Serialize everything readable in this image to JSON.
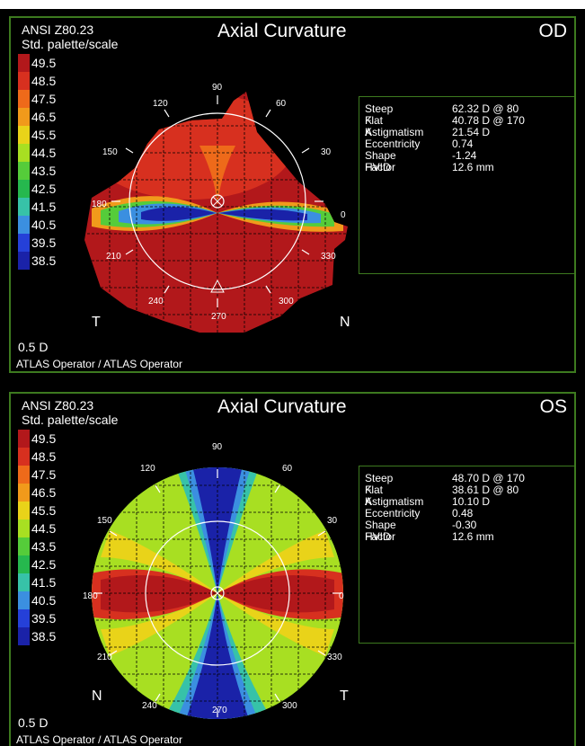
{
  "panels": [
    {
      "standard": "ANSI Z80.23",
      "palette_label": "Std. palette/scale",
      "title": "Axial Curvature",
      "eye": "OD",
      "scale": [
        "49.5",
        "48.5",
        "47.5",
        "46.5",
        "45.5",
        "44.5",
        "43.5",
        "42.5",
        "41.5",
        "40.5",
        "39.5",
        "38.5"
      ],
      "resolution": "0.5 D",
      "side_left": "T",
      "side_right": "N",
      "operator": "ATLAS Operator / ATLAS Operator",
      "angles": [
        "90",
        "60",
        "30",
        "0",
        "330",
        "300",
        "270",
        "240",
        "210",
        "180",
        "150",
        "120"
      ],
      "info": [
        {
          "label": "Steep K",
          "value": "62.32 D @ 80"
        },
        {
          "label": "Flat K",
          "value": "40.78 D @ 170"
        },
        {
          "label": "Astigmatism",
          "value": "21.54 D"
        },
        {
          "label": "Eccentricity",
          "value": "0.74"
        },
        {
          "label": "Shape Factor",
          "value": "-1.24"
        },
        {
          "label": "HVID",
          "value": "12.6 mm"
        }
      ]
    },
    {
      "standard": "ANSI Z80.23",
      "palette_label": "Std. palette/scale",
      "title": "Axial Curvature",
      "eye": "OS",
      "scale": [
        "49.5",
        "48.5",
        "47.5",
        "46.5",
        "45.5",
        "44.5",
        "43.5",
        "42.5",
        "41.5",
        "40.5",
        "39.5",
        "38.5"
      ],
      "resolution": "0.5 D",
      "side_left": "N",
      "side_right": "T",
      "operator": "ATLAS Operator / ATLAS Operator",
      "angles": [
        "90",
        "60",
        "30",
        "0",
        "330",
        "300",
        "270",
        "240",
        "210",
        "180",
        "150",
        "120"
      ],
      "info": [
        {
          "label": "Steep K",
          "value": "48.70 D @ 170"
        },
        {
          "label": "Flat K",
          "value": "38.61 D @ 80"
        },
        {
          "label": "Astigmatism",
          "value": "10.10 D"
        },
        {
          "label": "Eccentricity",
          "value": "0.48"
        },
        {
          "label": "Shape Factor",
          "value": "-0.30"
        },
        {
          "label": "HVID",
          "value": "12.6 mm"
        }
      ]
    }
  ],
  "palette_colors": [
    "#b2181b",
    "#d7301f",
    "#ee6a1a",
    "#f19a1b",
    "#e9d319",
    "#a8df22",
    "#55cc3a",
    "#26b84e",
    "#37c2a8",
    "#3b8fe0",
    "#2540d8",
    "#1a22a8"
  ]
}
